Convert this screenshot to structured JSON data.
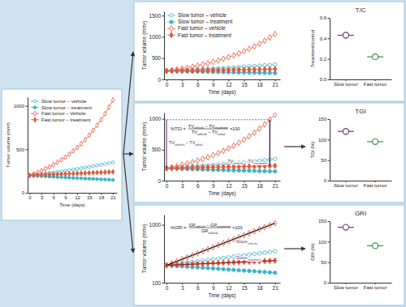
{
  "chart_data": [
    {
      "type": "line",
      "xlabel": "Time (days)",
      "ylabel": "Tumor volume (mm³)",
      "legend": "upper left",
      "x": [
        0,
        1,
        2,
        3,
        4,
        5,
        6,
        7,
        8,
        9,
        10,
        11,
        12,
        13,
        14,
        15,
        16,
        17,
        18,
        19,
        20,
        21
      ],
      "xlim": [
        -0.5,
        22
      ],
      "xticks": [
        0,
        3,
        6,
        9,
        12,
        15,
        18,
        21
      ],
      "ylim": [
        0,
        1100
      ],
      "yticks": [
        0,
        500,
        1000
      ],
      "grid": false,
      "series": [
        {
          "name": "Slow tumor – vehicle",
          "color": "#3cb4c8",
          "marker": "circle-open",
          "values": [
            200,
            205,
            211,
            217,
            222,
            228,
            235,
            241,
            247,
            254,
            261,
            268,
            275,
            283,
            290,
            298,
            306,
            315,
            323,
            332,
            341,
            350
          ]
        },
        {
          "name": "Slow tumor – treatment",
          "color": "#3cb4c8",
          "marker": "circle",
          "values": [
            200,
            197,
            194,
            192,
            189,
            186,
            184,
            181,
            179,
            176,
            174,
            171,
            169,
            167,
            164,
            162,
            160,
            158,
            155,
            153,
            151,
            149
          ]
        },
        {
          "name": "Fast tumor – Vehicle",
          "color": "#e5553a",
          "marker": "diamond-open",
          "values": [
            200,
            217,
            235,
            254,
            275,
            298,
            323,
            350,
            379,
            410,
            444,
            481,
            521,
            564,
            611,
            662,
            717,
            776,
            840,
            910,
            985,
            1067
          ]
        },
        {
          "name": "Fast tumor – treatment",
          "color": "#e5553a",
          "marker": "diamond",
          "values": [
            200,
            202,
            204,
            206,
            207,
            209,
            211,
            213,
            215,
            217,
            219,
            221,
            223,
            225,
            227,
            229,
            231,
            233,
            235,
            237,
            239,
            241
          ]
        }
      ]
    },
    {
      "type": "line",
      "xlabel": "Time (days)",
      "ylabel": "Tumor volume (mm³)",
      "legend": "upper left",
      "x": [
        0,
        1,
        2,
        3,
        4,
        5,
        6,
        7,
        8,
        9,
        10,
        11,
        12,
        13,
        14,
        15,
        16,
        17,
        18,
        19,
        20,
        21
      ],
      "xlim": [
        -0.5,
        22
      ],
      "xticks": [
        0,
        3,
        6,
        9,
        12,
        15,
        18,
        21
      ],
      "ylim": [
        0,
        1600
      ],
      "yticks": [
        0,
        500,
        1000,
        1500
      ],
      "grid": false,
      "series": [
        {
          "name": "Slow tumor – vehicle",
          "color": "#3cb4c8",
          "marker": "circle-open",
          "values": [
            200,
            205,
            211,
            217,
            222,
            228,
            235,
            241,
            247,
            254,
            261,
            268,
            275,
            283,
            290,
            298,
            306,
            315,
            323,
            332,
            341,
            350
          ]
        },
        {
          "name": "Slow tumor – treatment",
          "color": "#3cb4c8",
          "marker": "circle",
          "values": [
            200,
            197,
            194,
            192,
            189,
            186,
            184,
            181,
            179,
            176,
            174,
            171,
            169,
            167,
            164,
            162,
            160,
            158,
            155,
            153,
            151,
            149
          ]
        },
        {
          "name": "Fast tumor – vehicle",
          "color": "#e5553a",
          "marker": "diamond-open",
          "values": [
            200,
            217,
            235,
            254,
            275,
            298,
            323,
            350,
            379,
            410,
            444,
            481,
            521,
            564,
            611,
            662,
            717,
            776,
            840,
            910,
            985,
            1067
          ]
        },
        {
          "name": "Fast tumor – treatment",
          "color": "#e5553a",
          "marker": "diamond",
          "values": [
            200,
            202,
            204,
            206,
            207,
            209,
            211,
            213,
            215,
            217,
            219,
            221,
            223,
            225,
            227,
            229,
            231,
            233,
            235,
            237,
            239,
            241
          ]
        }
      ]
    },
    {
      "type": "dot",
      "title": "T/C",
      "ylabel": "Treatment/control",
      "categories": [
        "Slow tumor",
        "Fast tumor"
      ],
      "values": [
        0.43,
        0.22
      ],
      "colors": [
        "#6a3d7c",
        "#3e8e50"
      ],
      "marker": "circle-open",
      "ylim": [
        0,
        0.6
      ],
      "yticks": [
        {
          "value": 0,
          "label": "0.0"
        },
        0.2,
        0.4,
        0.6
      ]
    },
    {
      "type": "line",
      "xlabel": "Time (days)",
      "ylabel": "Tumor volume (mm³)",
      "x": [
        0,
        1,
        2,
        3,
        4,
        5,
        6,
        7,
        8,
        9,
        10,
        11,
        12,
        13,
        14,
        15,
        16,
        17,
        18,
        19,
        20,
        21
      ],
      "xlim": [
        -0.5,
        22
      ],
      "xticks": [
        0,
        3,
        6,
        9,
        12,
        15,
        18,
        21
      ],
      "ylim": [
        0,
        1100
      ],
      "yticks": [
        0,
        500,
        1000
      ],
      "grid": false,
      "annotations": {
        "formula": {
          "lhs": "%TGI =",
          "numerator": [
            {
              "text": "TV",
              "sub": "vehicle"
            },
            {
              "text": " – TV",
              "sub": "treatment"
            }
          ],
          "denominator": [
            {
              "text": "TV",
              "sub": "vehicle"
            },
            {
              "text": " – TV",
              "sub": "initial"
            }
          ],
          "rhs": "×100"
        },
        "labels": [
          [
            {
              "text": "TV",
              "sub": "vehicle"
            },
            {
              "text": " – TV",
              "sub": "initial"
            }
          ],
          [
            {
              "text": "TV",
              "sub": "vehicle"
            },
            {
              "text": " – TV",
              "sub": "treatment"
            }
          ]
        ]
      },
      "series": [
        {
          "color": "#3cb4c8",
          "marker": "circle-open",
          "values": [
            200,
            205,
            211,
            217,
            222,
            228,
            235,
            241,
            247,
            254,
            261,
            268,
            275,
            283,
            290,
            298,
            306,
            315,
            323,
            332,
            341,
            350
          ]
        },
        {
          "color": "#3cb4c8",
          "marker": "circle",
          "values": [
            200,
            197,
            194,
            192,
            189,
            186,
            184,
            181,
            179,
            176,
            174,
            171,
            169,
            167,
            164,
            162,
            160,
            158,
            155,
            153,
            151,
            149
          ]
        },
        {
          "color": "#e5553a",
          "marker": "diamond-open",
          "values": [
            200,
            217,
            235,
            254,
            275,
            298,
            323,
            350,
            379,
            410,
            444,
            481,
            521,
            564,
            611,
            662,
            717,
            776,
            840,
            910,
            985,
            1067
          ]
        },
        {
          "color": "#e5553a",
          "marker": "diamond",
          "values": [
            200,
            202,
            204,
            206,
            207,
            209,
            211,
            213,
            215,
            217,
            219,
            221,
            223,
            225,
            227,
            229,
            231,
            233,
            235,
            237,
            239,
            241
          ]
        }
      ]
    },
    {
      "type": "dot",
      "title": "TGI",
      "ylabel": "TGI (%)",
      "categories": [
        "Slow tumor",
        "Fast tumor"
      ],
      "values": [
        120,
        95
      ],
      "colors": [
        "#6a3d7c",
        "#3e8e50"
      ],
      "marker": "circle-open",
      "ylim": [
        0,
        150
      ],
      "yticks": [
        0,
        50,
        100,
        150
      ]
    },
    {
      "type": "line",
      "xlabel": "Time (days)",
      "ylabel": "Tumor volume (mm³)",
      "log": "y",
      "x": [
        0,
        1,
        2,
        3,
        4,
        5,
        6,
        7,
        8,
        9,
        10,
        11,
        12,
        13,
        14,
        15,
        16,
        17,
        18,
        19,
        20,
        21
      ],
      "xlim": [
        -0.5,
        22
      ],
      "xticks": [
        0,
        3,
        6,
        9,
        12,
        15,
        18,
        21
      ],
      "ylim": [
        100,
        1500
      ],
      "yticks": [
        100,
        1000
      ],
      "grid": false,
      "annotations": {
        "formula": {
          "lhs": "%GRI =",
          "numerator": [
            {
              "text": "GR",
              "sub": "vehicle"
            },
            {
              "text": " – GR",
              "sub": "treatment"
            }
          ],
          "denominator": [
            {
              "text": "GR",
              "sub": "vehicle"
            }
          ],
          "rhs": "×100"
        },
        "labels": [
          [
            {
              "text": "Slope",
              "sub": "vehicle"
            }
          ],
          [
            {
              "text": "Slope",
              "sub": "treatment"
            }
          ]
        ]
      },
      "series": [
        {
          "color": "#3cb4c8",
          "marker": "circle-open",
          "values": [
            200,
            205,
            211,
            217,
            222,
            228,
            235,
            241,
            247,
            254,
            261,
            268,
            275,
            283,
            290,
            298,
            306,
            315,
            323,
            332,
            341,
            350
          ]
        },
        {
          "color": "#3cb4c8",
          "marker": "circle",
          "values": [
            200,
            197,
            194,
            192,
            189,
            186,
            184,
            181,
            179,
            176,
            174,
            171,
            169,
            167,
            164,
            162,
            160,
            158,
            155,
            153,
            151,
            149
          ]
        },
        {
          "color": "#e5553a",
          "marker": "diamond-open",
          "values": [
            200,
            217,
            235,
            254,
            275,
            298,
            323,
            350,
            379,
            410,
            444,
            481,
            521,
            564,
            611,
            662,
            717,
            776,
            840,
            910,
            985,
            1067
          ]
        },
        {
          "color": "#e5553a",
          "marker": "diamond",
          "values": [
            200,
            202,
            204,
            206,
            207,
            209,
            211,
            213,
            215,
            217,
            219,
            221,
            223,
            225,
            227,
            229,
            231,
            233,
            235,
            237,
            239,
            241
          ]
        }
      ]
    },
    {
      "type": "dot",
      "title": "GRI",
      "ylabel": "GRI (%)",
      "categories": [
        "Slow tumor",
        "Fast tumor"
      ],
      "values": [
        135,
        90
      ],
      "colors": [
        "#6a3d7c",
        "#3e8e50"
      ],
      "marker": "circle-open",
      "ylim": [
        0,
        150
      ],
      "yticks": [
        0,
        50,
        100,
        150
      ]
    }
  ]
}
